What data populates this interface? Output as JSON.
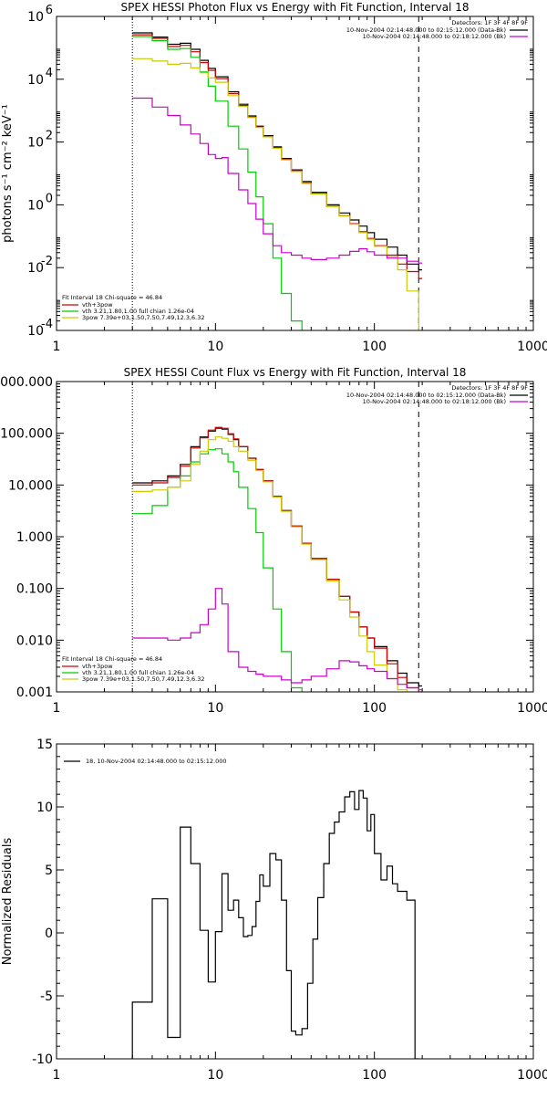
{
  "chart_data": [
    {
      "type": "line",
      "title": "SPEX HESSI Photon Flux vs Energy with Fit Function, Interval 18",
      "ylabel": "photons s⁻¹ cm⁻² keV⁻¹",
      "xscale": "log",
      "yscale": "log",
      "xlim": [
        1,
        1000
      ],
      "ylim": [
        0.0001,
        1000000
      ],
      "xticks": [
        1,
        10,
        100,
        1000
      ],
      "xtick_labels": [
        "1",
        "10",
        "100",
        "1000"
      ],
      "yticks": [
        0.0001,
        0.01,
        1,
        100,
        10000,
        1000000
      ],
      "ytick_labels": [
        {
          "base": "10",
          "exp": "-4"
        },
        {
          "base": "10",
          "exp": "-2"
        },
        {
          "base": "10",
          "exp": "0"
        },
        {
          "base": "10",
          "exp": "2"
        },
        {
          "base": "10",
          "exp": "4"
        },
        {
          "base": "10",
          "exp": "6"
        }
      ],
      "vlines": [
        {
          "x": 3,
          "style": "dotted"
        },
        {
          "x": 190,
          "style": "dashed"
        }
      ],
      "legend_top_right": {
        "detectors": "Detectors: 1F 3F 4F 8F 9F",
        "lines": [
          {
            "text": "10-Nov-2004 02:14:48.000 to 02:15:12.000 (Data-Bk)",
            "color": "#000000"
          },
          {
            "text": "10-Nov-2004 02:14:48.000 to 02:18:12.000 (Bk)",
            "color": "#cc00cc"
          }
        ]
      },
      "legend_bottom_left": {
        "header": "Fit Interval 18   Chi-square = 46.84",
        "lines": [
          {
            "text": "vth+3pow",
            "color": "#cc0000"
          },
          {
            "text": "vth 3.21,1.80,1.00  full chian 1.26e-04",
            "color": "#00cc00"
          },
          {
            "text": "3pow 7.39e+03,1.50,7.50,7.49,12.3,6.32",
            "color": "#cccc00"
          }
        ]
      },
      "series": [
        {
          "color": "#000000",
          "x": [
            3,
            4,
            5,
            6,
            7,
            8,
            9,
            10,
            12,
            14,
            16,
            18,
            20,
            23,
            26,
            30,
            35,
            40,
            50,
            60,
            70,
            80,
            90,
            100,
            120,
            140,
            160,
            190
          ],
          "y": [
            300000,
            220000,
            130000,
            140000,
            90000,
            40000,
            22000,
            12000,
            4000,
            1600,
            680,
            320,
            160,
            70,
            30,
            13,
            5.5,
            2.5,
            1.0,
            0.55,
            0.33,
            0.21,
            0.13,
            0.08,
            0.045,
            0.025,
            0.013,
            0.0085
          ]
        },
        {
          "color": "#cc0000",
          "x": [
            3,
            4,
            5,
            6,
            7,
            8,
            9,
            10,
            12,
            14,
            16,
            18,
            20,
            23,
            26,
            30,
            35,
            40,
            50,
            60,
            70,
            80,
            90,
            100,
            120,
            140,
            160,
            190
          ],
          "y": [
            260000,
            200000,
            110000,
            120000,
            75000,
            34000,
            19000,
            10500,
            3500,
            1450,
            620,
            300,
            150,
            65,
            28,
            12,
            5,
            2.3,
            0.9,
            0.45,
            0.25,
            0.14,
            0.085,
            0.05,
            0.025,
            0.013,
            0.0075,
            0.0045
          ]
        },
        {
          "color": "#00cc00",
          "x": [
            3,
            4,
            5,
            6,
            7,
            8,
            9,
            10,
            12,
            14,
            16,
            18,
            20,
            23,
            26,
            30,
            35
          ],
          "y": [
            230000,
            170000,
            90000,
            95000,
            50000,
            17000,
            6000,
            2000,
            320,
            60,
            11,
            1.8,
            0.25,
            0.02,
            0.0015,
            0.0002,
            8e-05
          ]
        },
        {
          "color": "#cccc00",
          "x": [
            3,
            4,
            5,
            6,
            7,
            8,
            9,
            10,
            12,
            14,
            16,
            18,
            20,
            23,
            26,
            30,
            35,
            40,
            50,
            60,
            70,
            80,
            90,
            100,
            120,
            140,
            160,
            190
          ],
          "y": [
            45000,
            38000,
            30000,
            32000,
            23000,
            16000,
            11000,
            8000,
            3000,
            1350,
            600,
            290,
            145,
            63,
            27,
            11.5,
            4.8,
            2.2,
            0.88,
            0.44,
            0.24,
            0.13,
            0.08,
            0.048,
            0.022,
            0.0085,
            0.0018,
            9e-05
          ]
        },
        {
          "color": "#cc00cc",
          "x": [
            3,
            4,
            5,
            6,
            7,
            8,
            9,
            10,
            11,
            12,
            14,
            16,
            18,
            20,
            23,
            26,
            30,
            35,
            40,
            50,
            60,
            70,
            80,
            90,
            100,
            120,
            140,
            160,
            190
          ],
          "y": [
            2500,
            1300,
            700,
            350,
            180,
            90,
            40,
            30,
            32,
            10,
            3,
            1.1,
            0.35,
            0.12,
            0.05,
            0.03,
            0.025,
            0.02,
            0.018,
            0.02,
            0.025,
            0.033,
            0.04,
            0.032,
            0.025,
            0.02,
            0.02,
            0.016,
            0.014
          ]
        }
      ]
    },
    {
      "type": "line",
      "title": "SPEX HESSI Count Flux vs Energy with Fit Function, Interval 18",
      "xscale": "log",
      "yscale": "log",
      "xlim": [
        1,
        1000
      ],
      "ylim": [
        0.001,
        1000
      ],
      "xticks": [
        1,
        10,
        100,
        1000
      ],
      "xtick_labels": [
        "1",
        "10",
        "100",
        "1000"
      ],
      "yticks": [
        0.001,
        0.01,
        0.1,
        1,
        10,
        100,
        1000
      ],
      "ytick_labels": [
        "0.001",
        "0.010",
        "0.100",
        "1.000",
        "10.000",
        "100.000",
        "1000.000"
      ],
      "vlines": [
        {
          "x": 3,
          "style": "dotted"
        },
        {
          "x": 190,
          "style": "dashed"
        }
      ],
      "legend_top_right": {
        "detectors": "Detectors: 1F 3F 4F 8F 9F",
        "lines": [
          {
            "text": "10-Nov-2004 02:14:48.000 to 02:15:12.000 (Data-Bk)",
            "color": "#000000"
          },
          {
            "text": "10-Nov-2004 02:14:48.000 to 02:18:12.000 (Bk)",
            "color": "#cc00cc"
          }
        ]
      },
      "legend_bottom_left": {
        "header": "Fit Interval 18   Chi-square = 46.84",
        "lines": [
          {
            "text": "vth+3pow",
            "color": "#cc0000"
          },
          {
            "text": "vth 3.21,1.80,1.00  full chian 1.26e-04",
            "color": "#00cc00"
          },
          {
            "text": "3pow 7.39e+03,1.50,7.50,7.49,12.3,6.32",
            "color": "#cccc00"
          }
        ]
      },
      "series": [
        {
          "color": "#000000",
          "x": [
            3,
            4,
            5,
            6,
            7,
            8,
            9,
            10,
            11,
            12,
            13,
            14,
            16,
            18,
            20,
            23,
            26,
            30,
            35,
            40,
            50,
            60,
            70,
            80,
            90,
            100,
            120,
            140,
            160,
            190
          ],
          "y": [
            11,
            12,
            15,
            25,
            55,
            85,
            110,
            125,
            120,
            95,
            75,
            55,
            33,
            20,
            12,
            6,
            3.2,
            1.6,
            0.75,
            0.38,
            0.15,
            0.07,
            0.035,
            0.018,
            0.011,
            0.0075,
            0.004,
            0.0023,
            0.0015,
            0.0013
          ]
        },
        {
          "color": "#cc0000",
          "x": [
            3,
            4,
            5,
            6,
            7,
            8,
            9,
            10,
            11,
            12,
            13,
            14,
            16,
            18,
            20,
            23,
            26,
            30,
            35,
            40,
            50,
            60,
            70,
            80,
            90,
            100,
            120,
            140,
            160,
            190
          ],
          "y": [
            10,
            11,
            14,
            23,
            52,
            82,
            115,
            130,
            125,
            98,
            78,
            55,
            33,
            20,
            12,
            6,
            3.2,
            1.6,
            0.75,
            0.38,
            0.15,
            0.07,
            0.035,
            0.018,
            0.011,
            0.007,
            0.0035,
            0.0019,
            0.0012,
            0.001
          ]
        },
        {
          "color": "#00cc00",
          "x": [
            3,
            4,
            5,
            6,
            7,
            8,
            9,
            10,
            11,
            12,
            13,
            14,
            16,
            18,
            20,
            23,
            26,
            30,
            35
          ],
          "y": [
            2.8,
            4,
            9,
            15,
            28,
            40,
            48,
            50,
            40,
            28,
            18,
            9,
            3.5,
            1.2,
            0.25,
            0.04,
            0.006,
            0.0012,
            0.0009
          ]
        },
        {
          "color": "#cccc00",
          "x": [
            3,
            4,
            5,
            6,
            7,
            8,
            9,
            10,
            11,
            12,
            13,
            14,
            16,
            18,
            20,
            23,
            26,
            30,
            35,
            40,
            50,
            60,
            70,
            80,
            90,
            100,
            120,
            140,
            160,
            190
          ],
          "y": [
            7.5,
            8,
            9,
            12,
            25,
            45,
            75,
            85,
            80,
            70,
            55,
            45,
            30,
            19,
            11.5,
            5.8,
            3.1,
            1.55,
            0.72,
            0.36,
            0.14,
            0.06,
            0.028,
            0.012,
            0.006,
            0.0033,
            0.0018,
            0.0011,
            0.0009,
            0.0009
          ]
        },
        {
          "color": "#cc00cc",
          "x": [
            3,
            4,
            5,
            6,
            7,
            8,
            9,
            10,
            11,
            12,
            14,
            16,
            18,
            20,
            23,
            26,
            30,
            35,
            40,
            50,
            60,
            70,
            80,
            90,
            100,
            120,
            140,
            160,
            190
          ],
          "y": [
            0.011,
            0.011,
            0.01,
            0.011,
            0.014,
            0.02,
            0.04,
            0.1,
            0.05,
            0.006,
            0.003,
            0.0025,
            0.0022,
            0.002,
            0.002,
            0.0017,
            0.0015,
            0.0017,
            0.002,
            0.0028,
            0.004,
            0.0038,
            0.0032,
            0.0028,
            0.0025,
            0.0018,
            0.0014,
            0.0012,
            0.0011
          ]
        }
      ]
    },
    {
      "type": "line",
      "ylabel": "Normalized Residuals",
      "xscale": "log",
      "yscale": "linear",
      "xlim": [
        1,
        1000
      ],
      "ylim": [
        -10,
        15
      ],
      "xticks": [
        1,
        10,
        100,
        1000
      ],
      "xtick_labels": [
        "1",
        "10",
        "100",
        "1000"
      ],
      "yticks": [
        -10,
        -5,
        0,
        5,
        10,
        15
      ],
      "ytick_labels": [
        "-10",
        "-5",
        "0",
        "5",
        "10",
        "15"
      ],
      "legend": {
        "text": "18, 10-Nov-2004 02:14:48.000 to 02:15:12.000",
        "color": "#000000"
      },
      "series": [
        {
          "color": "#000000",
          "steps": true,
          "edges": [
            3,
            4,
            5,
            6,
            7,
            8,
            9,
            10,
            11,
            12,
            13,
            14,
            15,
            16,
            17,
            18,
            19,
            20,
            22,
            24,
            26,
            28,
            30,
            32,
            35,
            38,
            41,
            44,
            48,
            52,
            56,
            60,
            65,
            70,
            75,
            80,
            85,
            90,
            95,
            100,
            110,
            120,
            130,
            140,
            160,
            180,
            190
          ],
          "values": [
            -5.5,
            2.7,
            -8.3,
            8.4,
            5.5,
            0.2,
            -3.9,
            0.1,
            4.7,
            1.8,
            2.6,
            1.2,
            -0.3,
            -0.2,
            0.5,
            2.5,
            4.6,
            3.7,
            6.3,
            5.8,
            2.6,
            -3,
            -7.8,
            -8.1,
            -7.6,
            -4,
            -0.5,
            2.8,
            5.5,
            7.9,
            8.8,
            9.6,
            10.8,
            11.2,
            9.8,
            11.3,
            10.7,
            8.1,
            9.4,
            6.3,
            4.2,
            5.3,
            3.9,
            3.3,
            2.6,
            -10
          ]
        }
      ]
    }
  ]
}
